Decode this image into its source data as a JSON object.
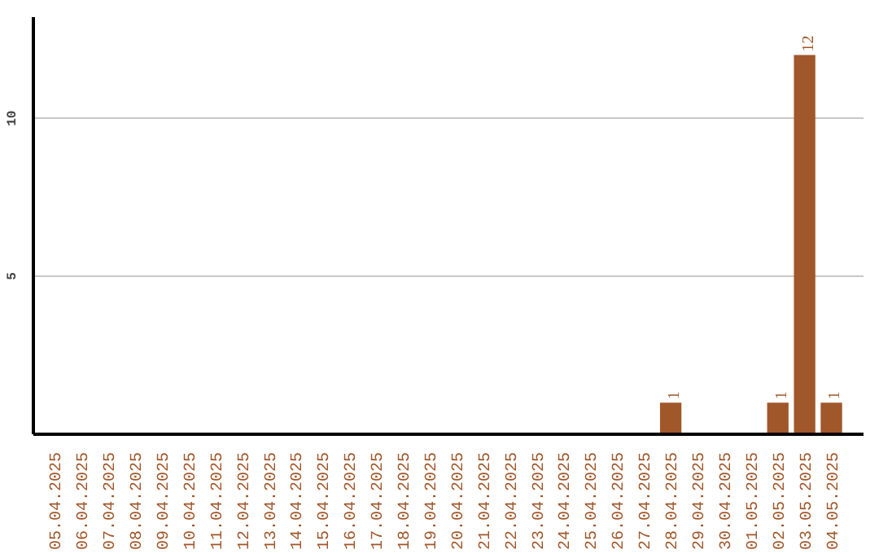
{
  "chart_data": {
    "type": "bar",
    "categories": [
      "05.04.2025",
      "06.04.2025",
      "07.04.2025",
      "08.04.2025",
      "09.04.2025",
      "10.04.2025",
      "11.04.2025",
      "12.04.2025",
      "13.04.2025",
      "14.04.2025",
      "15.04.2025",
      "16.04.2025",
      "17.04.2025",
      "18.04.2025",
      "19.04.2025",
      "20.04.2025",
      "21.04.2025",
      "22.04.2025",
      "23.04.2025",
      "24.04.2025",
      "25.04.2025",
      "26.04.2025",
      "27.04.2025",
      "28.04.2025",
      "29.04.2025",
      "30.04.2025",
      "01.05.2025",
      "02.05.2025",
      "03.05.2025",
      "04.05.2025"
    ],
    "values": [
      0,
      0,
      0,
      0,
      0,
      0,
      0,
      0,
      0,
      0,
      0,
      0,
      0,
      0,
      0,
      0,
      0,
      0,
      0,
      0,
      0,
      0,
      0,
      1,
      0,
      0,
      0,
      1,
      12,
      1
    ],
    "value_labels": [
      null,
      null,
      null,
      null,
      null,
      null,
      null,
      null,
      null,
      null,
      null,
      null,
      null,
      null,
      null,
      null,
      null,
      null,
      null,
      null,
      null,
      null,
      null,
      "1",
      null,
      null,
      null,
      "1",
      "12",
      "1"
    ],
    "color": "#a0572a",
    "ylim": [
      0,
      13.2
    ],
    "yticks": [
      5,
      10
    ],
    "grid": "y"
  }
}
